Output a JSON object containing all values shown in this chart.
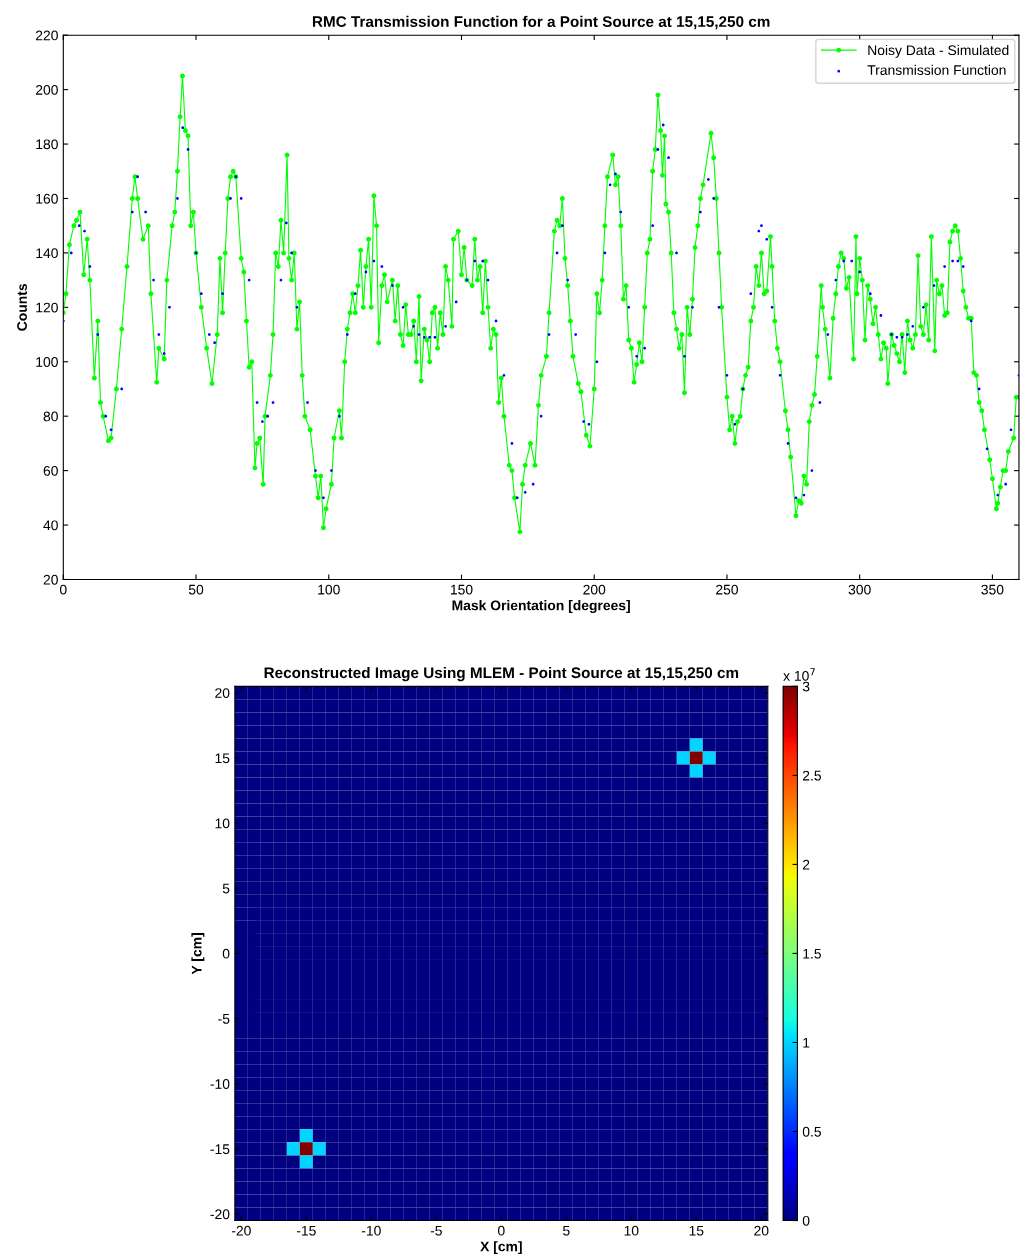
{
  "chart_data": [
    {
      "type": "line",
      "title": "RMC Transmission Function for a Point Source at 15,15,250 cm",
      "xlabel": "Mask Orientation [degrees]",
      "ylabel": "Counts",
      "xlim": [
        0,
        360
      ],
      "ylim": [
        20,
        220
      ],
      "xticks": [
        0,
        50,
        100,
        150,
        200,
        250,
        300,
        350
      ],
      "yticks": [
        20,
        40,
        60,
        80,
        100,
        120,
        140,
        160,
        180,
        200,
        220
      ],
      "grid": false,
      "legend": "top right",
      "marker": "circle",
      "series": [
        {
          "name": "Noisy Data - Simulated",
          "type": "line",
          "color": "#00ff00",
          "x": [
            0,
            1,
            2.3,
            4,
            5,
            6.3,
            7.7,
            9,
            10,
            11.7,
            13,
            14,
            15,
            17,
            18,
            20,
            22,
            24,
            26,
            27,
            28,
            30,
            32,
            33,
            35.2,
            36,
            38,
            39,
            41,
            42,
            43,
            44,
            44.9,
            46,
            47,
            48,
            49,
            50,
            52,
            54,
            56,
            58,
            59,
            60,
            61,
            62,
            63,
            64,
            65,
            67,
            68,
            69,
            70,
            71,
            72.2,
            73,
            74,
            75.3,
            76,
            78,
            79,
            80,
            81,
            82,
            83,
            84.3,
            85,
            86,
            87,
            88,
            89,
            90,
            91,
            93,
            95,
            96,
            97,
            98,
            99,
            101,
            102,
            104,
            104.8,
            106,
            107,
            108,
            109,
            110,
            111,
            112,
            113,
            114,
            115,
            116,
            117,
            118,
            118.8,
            120,
            121,
            122,
            124,
            125,
            126,
            127,
            128,
            129,
            130,
            131,
            132,
            133,
            134,
            134.8,
            136,
            137,
            138,
            139,
            140,
            141,
            142,
            143,
            144,
            145,
            146.4,
            147,
            148.8,
            150,
            151,
            152,
            154,
            155,
            156,
            157,
            158,
            159,
            160,
            161,
            162,
            163,
            164,
            165,
            166,
            168,
            169,
            170,
            172,
            173,
            174,
            176,
            177.7,
            179,
            180,
            182,
            183,
            185,
            186,
            187,
            188,
            189,
            190,
            191,
            192,
            194,
            195,
            197,
            198.4,
            200,
            201,
            202,
            203,
            204,
            205,
            207,
            208,
            209,
            210,
            211,
            212,
            213,
            214,
            215,
            216,
            217,
            218,
            219,
            220,
            221,
            222,
            223,
            224,
            225,
            225.7,
            226.5,
            227,
            228,
            229,
            230,
            231,
            232,
            233,
            234,
            235,
            236,
            237,
            238,
            239,
            240,
            241,
            244,
            245,
            246,
            247,
            248,
            250,
            251,
            252,
            253,
            254,
            255,
            256,
            257,
            258,
            259,
            260,
            261,
            262,
            263,
            264,
            265,
            266.4,
            267,
            268,
            269,
            270,
            272,
            273,
            274,
            276,
            277,
            278,
            279,
            280,
            281,
            282,
            283,
            284,
            285.5,
            286,
            287,
            288.8,
            290,
            291,
            292,
            293,
            294,
            295,
            296,
            297.7,
            298.6,
            299,
            300,
            301,
            302,
            303,
            304,
            305,
            306,
            307,
            308,
            309,
            310,
            310.6,
            312,
            313,
            314,
            315,
            316,
            317,
            318,
            319,
            320,
            321,
            322,
            323,
            324,
            325,
            326,
            327,
            328.3,
            329,
            330,
            331,
            332,
            333,
            334,
            335,
            336,
            337,
            338,
            339,
            340,
            341,
            342,
            343,
            344,
            345,
            346,
            347,
            349,
            350,
            351.5,
            352,
            353,
            354,
            355,
            356,
            358,
            359,
            360
          ],
          "values": [
            118,
            125,
            143,
            150,
            152,
            155,
            132,
            145,
            130,
            94,
            115,
            85,
            80,
            71,
            72,
            90,
            112,
            135,
            160,
            168,
            160,
            145,
            150,
            125,
            92.5,
            105,
            101,
            130,
            150,
            155,
            170,
            190,
            205,
            185,
            183,
            150,
            155,
            140,
            120,
            105,
            92,
            110,
            138,
            118,
            140,
            160,
            168,
            170,
            168,
            138,
            133,
            115,
            98,
            100,
            61,
            70,
            72,
            55,
            80,
            95,
            110,
            140,
            135,
            152,
            140,
            176,
            138,
            130,
            140,
            112,
            122,
            95,
            80,
            75,
            58,
            50,
            58,
            39,
            46,
            55,
            72,
            82,
            72,
            100,
            112,
            118,
            125,
            118,
            128,
            141,
            120,
            135,
            145,
            120,
            161,
            150,
            107,
            128,
            132,
            122,
            130,
            115,
            128,
            110,
            106,
            121,
            110,
            110,
            115,
            100,
            124,
            93,
            112,
            108,
            100,
            118,
            120,
            105,
            118,
            110,
            135,
            130,
            113,
            145,
            148,
            132,
            142,
            130,
            128,
            145,
            130,
            135,
            118,
            137,
            120,
            105,
            112,
            110,
            85,
            94,
            80,
            62,
            60,
            50,
            37.5,
            55,
            62,
            70,
            62,
            84,
            95,
            102,
            118,
            148,
            152,
            150,
            160,
            138,
            128,
            115,
            102,
            92,
            89,
            73,
            69,
            90,
            125,
            118,
            130,
            150,
            168,
            176,
            165,
            168,
            150,
            123,
            128,
            108,
            105,
            92.5,
            99,
            107,
            100,
            120,
            140,
            145,
            170,
            178,
            198,
            185,
            168.5,
            183,
            158,
            155,
            140,
            118,
            112,
            105,
            110,
            88.6,
            120,
            110,
            123,
            142,
            150,
            160,
            165,
            184,
            175,
            160,
            140,
            120,
            87,
            75,
            80,
            70,
            78,
            80,
            90,
            95,
            98,
            115,
            120,
            135,
            128,
            140,
            125,
            126,
            146,
            135,
            115,
            105,
            100,
            82,
            75,
            65,
            43.4,
            49,
            48,
            58,
            55,
            78,
            84,
            88,
            102,
            128,
            120,
            112,
            94,
            116,
            125,
            135,
            140,
            138,
            127,
            131,
            101,
            146,
            125,
            138,
            130,
            108,
            128,
            123,
            114,
            120,
            110,
            101,
            107,
            105,
            92,
            110,
            106,
            103,
            100,
            110,
            96,
            115,
            108,
            105,
            110,
            139,
            113,
            110,
            121,
            108,
            146,
            104,
            130,
            125,
            128,
            117,
            118,
            144,
            148,
            150,
            148,
            138,
            126,
            120,
            116,
            116,
            96,
            95,
            85,
            82,
            75,
            64,
            57,
            46,
            48,
            54,
            60,
            60,
            67,
            72,
            87,
            87
          ]
        },
        {
          "name": "Transmission Function",
          "type": "scatter",
          "color": "#0000ff",
          "x": [
            0,
            3,
            6,
            8,
            10,
            13,
            16,
            18,
            22,
            26,
            28,
            31,
            34,
            36,
            38,
            40,
            43,
            45,
            47,
            50,
            52,
            55,
            57,
            60,
            63,
            65,
            67,
            70,
            73,
            75,
            77,
            79,
            82,
            84,
            86,
            88,
            92,
            95,
            98,
            101,
            104,
            107,
            110,
            114,
            117,
            120,
            124,
            128,
            132,
            134,
            136,
            138,
            140,
            144,
            148,
            152,
            155,
            158,
            160,
            163,
            166,
            169,
            171,
            174,
            177,
            180,
            183,
            186,
            188,
            190,
            193,
            196,
            198,
            201,
            204,
            206,
            208,
            210,
            213,
            216,
            219,
            222,
            224,
            226,
            228,
            231,
            234,
            237,
            240,
            243,
            245,
            247,
            250,
            253,
            256,
            259,
            262,
            263,
            265,
            267,
            270,
            273,
            276,
            279,
            282,
            285,
            288,
            291,
            294,
            297,
            300,
            304,
            308,
            312,
            314,
            316,
            318,
            320,
            324,
            328,
            332,
            335,
            337,
            339,
            342,
            345,
            348,
            352,
            355,
            357,
            360
          ],
          "values": [
            115,
            140,
            150,
            148,
            135,
            110,
            80,
            75,
            90,
            155,
            168,
            155,
            130,
            110,
            103,
            120,
            160,
            186,
            178,
            140,
            125,
            110,
            107,
            125,
            160,
            168,
            160,
            130,
            85,
            78,
            80,
            85,
            130,
            151,
            140,
            120,
            85,
            60,
            50,
            60,
            80,
            110,
            125,
            133,
            137,
            135,
            128,
            120,
            113,
            110,
            109,
            109,
            109,
            113,
            122,
            130,
            137,
            137,
            130,
            115,
            95,
            70,
            50,
            52,
            55,
            80,
            110,
            140,
            150,
            130,
            110,
            78,
            77,
            100,
            140,
            165,
            169,
            155,
            120,
            102,
            105,
            150,
            178,
            187,
            175,
            140,
            102,
            120,
            155,
            167,
            160,
            120,
            95,
            77,
            90,
            125,
            148,
            150,
            145,
            120,
            95,
            70,
            50,
            51,
            60,
            85,
            110,
            130,
            137,
            137,
            133,
            125,
            117,
            110,
            109,
            109,
            110,
            113,
            120,
            128,
            135,
            137,
            137,
            135,
            115,
            90,
            68,
            51,
            55,
            75,
            95
          ]
        }
      ]
    },
    {
      "type": "heatmap",
      "title": "Reconstructed Image Using MLEM - Point Source at 15,15,250 cm",
      "xlabel": "X [cm]",
      "ylabel": "Y [cm]",
      "xlim": [
        -20.5,
        20.5
      ],
      "ylim": [
        -20.5,
        20.5
      ],
      "xticks": [
        -20,
        -15,
        -10,
        -5,
        0,
        5,
        10,
        15,
        20
      ],
      "yticks": [
        -20,
        -15,
        -10,
        -5,
        0,
        5,
        10,
        15,
        20
      ],
      "clim": [
        0,
        3
      ],
      "cticks": [
        0,
        0.5,
        1,
        1.5,
        2,
        2.5,
        3
      ],
      "annotations": [
        "x 10$^{7}$"
      ],
      "cells": [
        [
          0,
          0,
          0,
          0,
          0,
          0,
          0,
          0,
          0,
          0,
          0,
          0,
          0,
          0,
          0,
          0,
          0,
          0,
          0,
          0,
          0,
          0,
          0,
          0,
          0,
          0,
          0,
          0,
          0,
          0,
          0,
          0,
          0,
          0,
          0,
          0,
          0,
          0,
          0,
          0,
          0
        ],
        [
          0,
          0,
          0,
          0,
          0,
          0,
          0,
          0,
          0,
          0,
          0,
          0,
          0,
          0,
          0,
          0,
          0,
          0,
          0,
          0,
          0,
          0,
          0,
          0,
          0,
          0,
          0,
          0,
          0,
          0,
          0,
          0,
          0,
          0,
          0,
          0,
          0,
          0,
          0,
          0,
          0
        ],
        [
          0,
          0,
          0,
          0,
          0,
          0,
          0,
          0,
          0,
          0,
          0,
          0,
          0,
          0,
          0,
          0,
          0,
          0,
          0,
          0,
          0,
          0,
          0,
          0,
          0,
          0,
          0,
          0,
          0,
          0,
          0,
          0,
          0,
          0,
          0,
          0,
          0,
          0,
          0,
          0,
          0
        ],
        [
          0,
          0,
          0,
          0,
          0,
          0,
          0,
          0,
          0,
          0,
          0,
          0,
          0,
          0,
          0,
          0,
          0,
          0,
          0,
          0,
          0,
          0,
          0,
          0,
          0,
          0,
          0,
          0,
          0,
          0,
          0,
          0,
          0,
          0,
          0,
          0,
          0,
          0,
          0,
          0,
          0
        ],
        [
          0,
          0,
          0,
          0,
          0,
          0,
          0,
          0,
          0,
          0,
          0,
          0,
          0,
          0,
          0,
          0,
          0,
          0,
          0,
          0,
          0,
          0,
          0,
          0,
          0,
          0,
          0,
          0,
          0,
          0,
          0,
          0,
          0,
          0,
          0,
          1,
          0,
          0,
          0,
          0,
          0
        ],
        [
          0,
          0,
          0,
          0,
          0,
          0,
          0,
          0,
          0,
          0,
          0,
          0,
          0,
          0,
          0,
          0,
          0,
          0,
          0,
          0,
          0,
          0,
          0,
          0,
          0,
          0,
          0,
          0,
          0,
          0,
          0,
          0,
          0,
          0,
          1,
          3,
          1,
          0,
          0,
          0,
          0
        ],
        [
          0,
          0,
          0,
          0,
          0,
          0,
          0,
          0,
          0,
          0,
          0,
          0,
          0,
          0,
          0,
          0,
          0,
          0,
          0,
          0,
          0,
          0,
          0,
          0,
          0,
          0,
          0,
          0,
          0,
          0,
          0,
          0,
          0,
          0,
          0,
          1,
          0,
          0,
          0,
          0,
          0
        ],
        [
          0,
          0,
          0,
          0,
          0,
          0,
          0,
          0,
          0,
          0,
          0,
          0,
          0,
          0,
          0,
          0,
          0,
          0,
          0,
          0,
          0,
          0,
          0,
          0,
          0,
          0,
          0,
          0,
          0,
          0,
          0,
          0,
          0,
          0,
          0,
          0,
          0,
          0,
          0,
          0,
          0
        ],
        [
          0,
          0,
          0,
          0,
          0,
          0,
          0,
          0,
          0,
          0,
          0,
          0,
          0,
          0,
          0,
          0,
          0,
          0,
          0,
          0,
          0,
          0,
          0,
          0,
          0,
          0,
          0,
          0,
          0,
          0,
          0,
          0,
          0,
          0,
          0,
          0,
          0,
          0,
          0,
          0,
          0
        ],
        [
          0,
          0,
          0,
          0,
          0,
          0,
          0,
          0,
          0,
          0,
          0,
          0,
          0,
          0,
          0,
          0,
          0,
          0,
          0,
          0,
          0,
          0,
          0,
          0,
          0,
          0,
          0,
          0,
          0,
          0,
          0,
          0,
          0,
          0,
          0,
          0,
          0,
          0,
          0,
          0,
          0
        ],
        [
          0,
          0,
          0,
          0,
          0,
          0,
          0,
          0,
          0,
          0,
          0,
          0,
          0,
          0,
          0,
          0,
          0,
          0,
          0,
          0,
          0,
          0,
          0,
          0,
          0,
          0,
          0,
          0,
          0,
          0,
          0,
          0,
          0,
          0,
          0,
          0,
          0,
          0,
          0,
          0,
          0
        ],
        [
          0,
          0,
          0,
          0,
          0,
          0,
          0,
          0,
          0,
          0,
          0,
          0,
          0,
          0,
          0,
          0,
          0,
          0,
          0,
          0,
          0,
          0,
          0,
          0,
          0,
          0,
          0,
          0,
          0,
          0,
          0,
          0,
          0,
          0,
          0,
          0,
          0,
          0,
          0,
          0,
          0
        ],
        [
          0,
          0,
          0,
          0,
          0,
          0,
          0,
          0,
          0,
          0,
          0,
          0,
          0,
          0,
          0,
          0,
          0,
          0,
          0,
          0,
          0,
          0,
          0,
          0,
          0,
          0,
          0,
          0,
          0,
          0,
          0,
          0,
          0,
          0,
          0,
          0,
          0,
          0,
          0,
          0,
          0
        ],
        [
          0,
          0,
          0,
          0,
          0,
          0,
          0,
          0,
          0,
          0,
          0,
          0,
          0,
          0,
          0,
          0,
          0,
          0,
          0,
          0,
          0,
          0,
          0,
          0,
          0,
          0,
          0,
          0,
          0,
          0,
          0,
          0,
          0,
          0,
          0,
          0,
          0,
          0,
          0,
          0,
          0
        ],
        [
          0,
          0,
          0,
          0,
          0,
          0,
          0,
          0,
          0,
          0,
          0,
          0,
          0,
          0,
          0,
          0,
          0,
          0,
          0,
          0,
          0,
          0,
          0,
          0,
          0,
          0,
          0,
          0,
          0,
          0,
          0,
          0,
          0,
          0,
          0,
          0,
          0,
          0,
          0,
          0,
          0
        ],
        [
          0,
          0,
          0,
          0,
          0,
          0,
          0,
          0,
          0,
          0,
          0,
          0,
          0,
          0,
          0,
          0,
          0,
          0,
          0,
          0,
          0,
          0,
          0,
          0,
          0,
          0,
          0,
          0,
          0,
          0,
          0,
          0,
          0,
          0,
          0,
          0,
          0,
          0,
          0,
          0,
          0
        ],
        [
          0,
          0,
          0,
          0,
          0,
          0,
          0,
          0,
          0,
          0,
          0,
          0,
          0,
          0,
          0,
          0,
          0,
          0,
          0,
          0,
          0,
          0,
          0,
          0,
          0,
          0,
          0,
          0,
          0,
          0,
          0,
          0,
          0,
          0,
          0,
          0,
          0,
          0,
          0,
          0,
          0
        ],
        [
          0,
          0,
          0,
          0,
          0,
          0,
          0,
          0,
          0,
          0,
          0,
          0,
          0,
          0,
          0,
          0,
          0,
          0,
          0,
          0,
          0,
          0,
          0,
          0,
          0,
          0,
          0,
          0,
          0,
          0,
          0,
          0,
          0,
          0,
          0,
          0,
          0,
          0,
          0,
          0,
          0
        ],
        [
          0,
          0,
          0,
          0,
          0,
          0,
          0,
          0,
          0,
          0,
          0,
          0,
          0,
          0,
          0,
          0,
          0,
          0,
          0,
          0,
          0,
          0,
          0,
          0,
          0,
          0,
          0,
          0,
          0,
          0,
          0,
          0,
          0,
          0,
          0,
          0,
          0,
          0,
          0,
          0,
          0
        ],
        [
          0,
          0,
          0,
          0,
          0,
          0,
          0,
          0,
          0,
          0,
          0,
          0,
          0,
          0,
          0,
          0,
          0,
          0,
          0,
          0,
          0,
          0,
          0,
          0,
          0,
          0,
          0,
          0,
          0,
          0,
          0,
          0,
          0,
          0,
          0,
          0,
          0,
          0,
          0,
          0,
          0
        ],
        [
          0,
          0,
          0,
          0,
          0,
          0,
          0,
          0,
          0,
          0,
          0,
          0,
          0,
          0,
          0,
          0,
          0,
          0,
          0,
          0,
          0,
          0,
          0,
          0,
          0,
          0,
          0,
          0,
          0,
          0,
          0,
          0,
          0,
          0,
          0,
          0,
          0,
          0,
          0,
          0,
          0
        ],
        [
          0,
          0,
          0,
          0,
          0,
          0,
          0,
          0,
          0,
          0,
          0,
          0,
          0,
          0,
          0,
          0,
          0,
          0,
          0,
          0,
          0,
          0,
          0,
          0,
          0,
          0,
          0,
          0,
          0,
          0,
          0,
          0,
          0,
          0,
          0,
          0,
          0,
          0,
          0,
          0,
          0
        ],
        [
          0,
          0,
          0,
          0,
          0,
          0,
          0,
          0,
          0,
          0,
          0,
          0,
          0,
          0,
          0,
          0,
          0,
          0,
          0,
          0,
          0,
          0,
          0,
          0,
          0,
          0,
          0,
          0,
          0,
          0,
          0,
          0,
          0,
          0,
          0,
          0,
          0,
          0,
          0,
          0,
          0
        ],
        [
          0,
          0,
          0,
          0,
          0,
          0,
          0,
          0,
          0,
          0,
          0,
          0,
          0,
          0,
          0,
          0,
          0,
          0,
          0,
          0,
          0,
          0,
          0,
          0,
          0,
          0,
          0,
          0,
          0,
          0,
          0,
          0,
          0,
          0,
          0,
          0,
          0,
          0,
          0,
          0,
          0
        ],
        [
          0,
          0,
          0,
          0,
          0,
          0,
          0,
          0,
          0,
          0,
          0,
          0,
          0,
          0,
          0,
          0,
          0,
          0,
          0,
          0,
          0,
          0,
          0,
          0,
          0,
          0,
          0,
          0,
          0,
          0,
          0,
          0,
          0,
          0,
          0,
          0,
          0,
          0,
          0,
          0,
          0
        ],
        [
          0,
          0,
          0,
          0,
          0,
          0,
          0,
          0,
          0,
          0,
          0,
          0,
          0,
          0,
          0,
          0,
          0,
          0,
          0,
          0,
          0,
          0,
          0,
          0,
          0,
          0,
          0,
          0,
          0,
          0,
          0,
          0,
          0,
          0,
          0,
          0,
          0,
          0,
          0,
          0,
          0
        ],
        [
          0,
          0,
          0,
          0,
          0,
          0,
          0,
          0,
          0,
          0,
          0,
          0,
          0,
          0,
          0,
          0,
          0,
          0,
          0,
          0,
          0,
          0,
          0,
          0,
          0,
          0,
          0,
          0,
          0,
          0,
          0,
          0,
          0,
          0,
          0,
          0,
          0,
          0,
          0,
          0,
          0
        ],
        [
          0,
          0,
          0,
          0,
          0,
          0,
          0,
          0,
          0,
          0,
          0,
          0,
          0,
          0,
          0,
          0,
          0,
          0,
          0,
          0,
          0,
          0,
          0,
          0,
          0,
          0,
          0,
          0,
          0,
          0,
          0,
          0,
          0,
          0,
          0,
          0,
          0,
          0,
          0,
          0,
          0
        ],
        [
          0,
          0,
          0,
          0,
          0,
          0,
          0,
          0,
          0,
          0,
          0,
          0,
          0,
          0,
          0,
          0,
          0,
          0,
          0,
          0,
          0,
          0,
          0,
          0,
          0,
          0,
          0,
          0,
          0,
          0,
          0,
          0,
          0,
          0,
          0,
          0,
          0,
          0,
          0,
          0,
          0
        ],
        [
          0,
          0,
          0,
          0,
          0,
          0,
          0,
          0,
          0,
          0,
          0,
          0,
          0,
          0,
          0,
          0,
          0,
          0,
          0,
          0,
          0,
          0,
          0,
          0,
          0,
          0,
          0,
          0,
          0,
          0,
          0,
          0,
          0,
          0,
          0,
          0,
          0,
          0,
          0,
          0,
          0
        ],
        [
          0,
          0,
          0,
          0,
          0,
          0,
          0,
          0,
          0,
          0,
          0,
          0,
          0,
          0,
          0,
          0,
          0,
          0,
          0,
          0,
          0,
          0,
          0,
          0,
          0,
          0,
          0,
          0,
          0,
          0,
          0,
          0,
          0,
          0,
          0,
          0,
          0,
          0,
          0,
          0,
          0
        ],
        [
          0,
          0,
          0,
          0,
          0,
          0,
          0,
          0,
          0,
          0,
          0,
          0,
          0,
          0,
          0,
          0,
          0,
          0,
          0,
          0,
          0,
          0,
          0,
          0,
          0,
          0,
          0,
          0,
          0,
          0,
          0,
          0,
          0,
          0,
          0,
          0,
          0,
          0,
          0,
          0,
          0
        ],
        [
          0,
          0,
          0,
          0,
          0,
          0,
          0,
          0,
          0,
          0,
          0,
          0,
          0,
          0,
          0,
          0,
          0,
          0,
          0,
          0,
          0,
          0,
          0,
          0,
          0,
          0,
          0,
          0,
          0,
          0,
          0,
          0,
          0,
          0,
          0,
          0,
          0,
          0,
          0,
          0,
          0
        ],
        [
          0,
          0,
          0,
          0,
          0,
          0,
          0,
          0,
          0,
          0,
          0,
          0,
          0,
          0,
          0,
          0,
          0,
          0,
          0,
          0,
          0,
          0,
          0,
          0,
          0,
          0,
          0,
          0,
          0,
          0,
          0,
          0,
          0,
          0,
          0,
          0,
          0,
          0,
          0,
          0,
          0
        ],
        [
          0,
          0,
          0,
          0,
          0,
          1,
          0,
          0,
          0,
          0,
          0,
          0,
          0,
          0,
          0,
          0,
          0,
          0,
          0,
          0,
          0,
          0,
          0,
          0,
          0,
          0,
          0,
          0,
          0,
          0,
          0,
          0,
          0,
          0,
          0,
          0,
          0,
          0,
          0,
          0,
          0
        ],
        [
          0,
          0,
          0,
          0,
          1,
          3,
          1,
          0,
          0,
          0,
          0,
          0,
          0,
          0,
          0,
          0,
          0,
          0,
          0,
          0,
          0,
          0,
          0,
          0,
          0,
          0,
          0,
          0,
          0,
          0,
          0,
          0,
          0,
          0,
          0,
          0,
          0,
          0,
          0,
          0,
          0
        ],
        [
          0,
          0,
          0,
          0,
          0,
          1,
          0,
          0,
          0,
          0,
          0,
          0,
          0,
          0,
          0,
          0,
          0,
          0,
          0,
          0,
          0,
          0,
          0,
          0,
          0,
          0,
          0,
          0,
          0,
          0,
          0,
          0,
          0,
          0,
          0,
          0,
          0,
          0,
          0,
          0,
          0
        ],
        [
          0,
          0,
          0,
          0,
          0,
          0,
          0,
          0,
          0,
          0,
          0,
          0,
          0,
          0,
          0,
          0,
          0,
          0,
          0,
          0,
          0,
          0,
          0,
          0,
          0,
          0,
          0,
          0,
          0,
          0,
          0,
          0,
          0,
          0,
          0,
          0,
          0,
          0,
          0,
          0,
          0
        ],
        [
          0,
          0,
          0,
          0,
          0,
          0,
          0,
          0,
          0,
          0,
          0,
          0,
          0,
          0,
          0,
          0,
          0,
          0,
          0,
          0,
          0,
          0,
          0,
          0,
          0,
          0,
          0,
          0,
          0,
          0,
          0,
          0,
          0,
          0,
          0,
          0,
          0,
          0,
          0,
          0,
          0
        ],
        [
          0,
          0,
          0,
          0,
          0,
          0,
          0,
          0,
          0,
          0,
          0,
          0,
          0,
          0,
          0,
          0,
          0,
          0,
          0,
          0,
          0,
          0,
          0,
          0,
          0,
          0,
          0,
          0,
          0,
          0,
          0,
          0,
          0,
          0,
          0,
          0,
          0,
          0,
          0,
          0,
          0
        ],
        [
          0,
          0,
          0,
          0,
          0,
          0,
          0,
          0,
          0,
          0,
          0,
          0,
          0,
          0,
          0,
          0,
          0,
          0,
          0,
          0,
          0,
          0,
          0,
          0,
          0,
          0,
          0,
          0,
          0,
          0,
          0,
          0,
          0,
          0,
          0,
          0,
          0,
          0,
          0,
          0,
          0
        ]
      ]
    }
  ]
}
